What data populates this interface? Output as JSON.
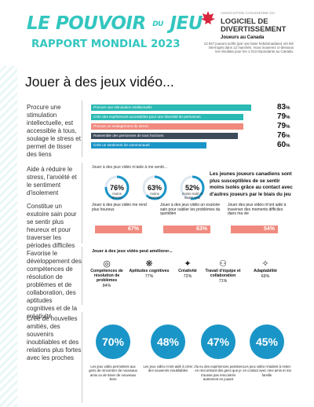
{
  "header": {
    "title_a": "LE POUVOIR",
    "title_du": "DU",
    "title_b": "JEU",
    "subtitle": "RAPPORT MONDIAL 2023",
    "association": "ASSOCIATION CANADIENNE DU",
    "brand_line1": "LOGICIEL DE",
    "brand_line2": "DIVERTISSEMENT",
    "sample_title": "Joueurs au Canada",
    "sample_desc": "12 847 joueurs actifs (par une base hebdomadaire) ont été interrogés dans 12 marchés. Vous trouverez ci-dessous les résultats pour les 1 013 répondants au Canada."
  },
  "page_title": "Jouer à des jeux vidéo...",
  "section1": {
    "heading": "Procure une stimulation intellectuelle, est accessible à tous, soulage le stress et permet de tisser des liens",
    "bars": [
      {
        "label": "Procure une stimulation intellectuelle",
        "value": 83,
        "color": "#2bb9b3"
      },
      {
        "label": "Crée des expériences accessibles pour une diversité de personnes",
        "value": 79,
        "color": "#2bb9b3"
      },
      {
        "label": "Procure un soulagement du stress",
        "value": 79,
        "color": "#f08a7e"
      },
      {
        "label": "Rassemble des personnes de tous horizons",
        "value": 76,
        "color": "#3d4a5a"
      },
      {
        "label": "Crée un sentiment de communauté",
        "value": 60,
        "color": "#1a95c7"
      }
    ],
    "pct_suffix": "%"
  },
  "section2": {
    "heading": "Aide à réduire le stress, l'anxiété et le sentiment d'isolement",
    "intro": "Jouer à des jeux vidéo m'aide à me sentir...",
    "rings": [
      {
        "value": "76%",
        "fill": 0.76,
        "label_line1": "moins",
        "label_line2": "stressé"
      },
      {
        "value": "63%",
        "fill": 0.63,
        "label_line1": "moins",
        "label_line2": "anxieux"
      },
      {
        "value": "52%",
        "fill": 0.52,
        "label_line1": "moins isolé et",
        "label_line2": "moins seul"
      }
    ],
    "note": "Les jeunes joueurs canadiens sont plus susceptibles de se sentir moins isolés grâce au contact avec d'autres joueurs par le biais du jeu"
  },
  "section3": {
    "heading": "Constitue un exutoire sain pour se sentir plus heureux et pour traverser les périodes difficiles",
    "items": [
      {
        "text": "Jouer à des jeux vidéo me rend plus heureux",
        "value": "67%"
      },
      {
        "text": "Jouer à des jeux vidéo un exutoire sain pour oublier les problèmes du quotidien",
        "value": "63%"
      },
      {
        "text": "Jouer des jeux vidéo m'ont aidé à traverser des moments difficiles dans ma vie",
        "value": "54%"
      }
    ]
  },
  "section4": {
    "heading": "Favorise le développement des compétences de résolution de problèmes et de collaboration, des aptitudes cognitives et de la créativité",
    "intro": "Jouer à des jeux vidéo peut améliorer...",
    "skills": [
      {
        "icon": "target-icon",
        "glyph": "◎",
        "name": "Compétences de résolution de problèmes",
        "value": "84%"
      },
      {
        "icon": "brain-icon",
        "glyph": "❋",
        "name": "Aptitudes cognitives",
        "value": "77%"
      },
      {
        "icon": "star-icon",
        "glyph": "✦",
        "name": "Créativité",
        "value": "72%"
      },
      {
        "icon": "team-icon",
        "glyph": "⚇",
        "name": "Travail d'équipe et collaboration",
        "value": "71%"
      },
      {
        "icon": "adaptability-icon",
        "glyph": "✧",
        "name": "Adaptabilité",
        "value": "69%"
      }
    ]
  },
  "section5": {
    "heading": "Crée de nouvelles amitiés, des souvenirs inoubliables et des relations plus fortes avec les proches",
    "items": [
      {
        "value": "70%",
        "text": "Les jeux vidéo permettent aux gens de rencontrer de nouveaux amis ou de tisser de nouveaux liens"
      },
      {
        "value": "48%",
        "text": "Les jeux vidéo m'ont aidé à créer des souvenirs inoubliables"
      },
      {
        "value": "47%",
        "text": "J'ai eu des expériences positives en rencontrant des gens que je n'aurais pas rencontrés autrement en jouant"
      },
      {
        "value": "45%",
        "text": "Les jeux vidéo m'aident à rester en contact avec mes amis et ma famille"
      }
    ]
  },
  "colors": {
    "teal": "#33c6bf",
    "coral": "#f08a7e",
    "navy": "#3d4a5a",
    "blue": "#1a95c7"
  }
}
